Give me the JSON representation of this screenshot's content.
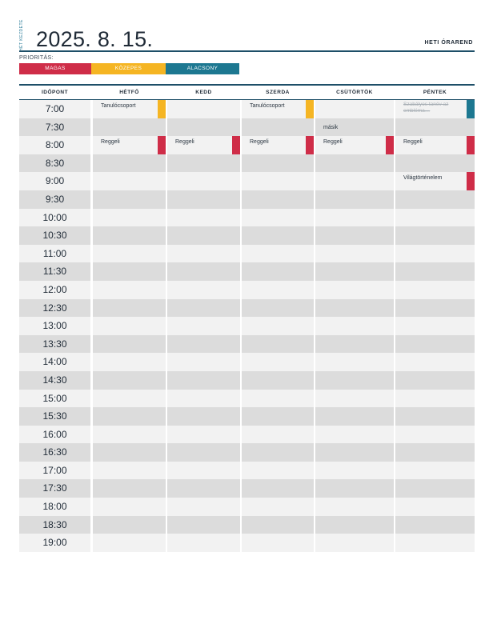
{
  "header": {
    "start_label": "HÉT KEZDETE",
    "date": "2025. 8. 15.",
    "title": "HETI ÓRAREND"
  },
  "priority": {
    "label": "PRIORITÁS:",
    "levels": [
      {
        "key": "high",
        "label": "MAGAS",
        "color": "#cf2d48"
      },
      {
        "key": "mid",
        "label": "KÖZEPES",
        "color": "#f5b523"
      },
      {
        "key": "low",
        "label": "ALACSONY",
        "color": "#1d7891"
      }
    ]
  },
  "table": {
    "columns": [
      "IDŐPONT",
      "HÉTFŐ",
      "KEDD",
      "SZERDA",
      "CSÜTÖRTÖK",
      "PÉNTEK"
    ],
    "times": [
      "7:00",
      "7:30",
      "8:00",
      "8:30",
      "9:00",
      "9:30",
      "10:00",
      "10:30",
      "11:00",
      "11:30",
      "12:00",
      "12:30",
      "13:00",
      "13:30",
      "14:00",
      "14:30",
      "15:00",
      "15:30",
      "16:00",
      "16:30",
      "17:00",
      "17:30",
      "18:00",
      "18:30",
      "19:00"
    ],
    "entries": [
      {
        "time": "7:00",
        "day": 0,
        "text": "Tanulócsoport",
        "priority": "mid"
      },
      {
        "time": "7:00",
        "day": 2,
        "text": "Tanulócsoport",
        "priority": "mid"
      },
      {
        "time": "7:00",
        "day": 4,
        "text": "Szabályos tanév az embléma…",
        "priority": "low",
        "struck": true
      },
      {
        "time": "7:30",
        "day": 3,
        "text": "másik"
      },
      {
        "time": "8:00",
        "day": 0,
        "text": "Reggeli",
        "priority": "high"
      },
      {
        "time": "8:00",
        "day": 1,
        "text": "Reggeli",
        "priority": "high"
      },
      {
        "time": "8:00",
        "day": 2,
        "text": "Reggeli",
        "priority": "high"
      },
      {
        "time": "8:00",
        "day": 3,
        "text": "Reggeli",
        "priority": "high"
      },
      {
        "time": "8:00",
        "day": 4,
        "text": "Reggeli",
        "priority": "high"
      },
      {
        "time": "9:00",
        "day": 4,
        "text": "Világtörténelem",
        "priority": "high"
      }
    ]
  }
}
